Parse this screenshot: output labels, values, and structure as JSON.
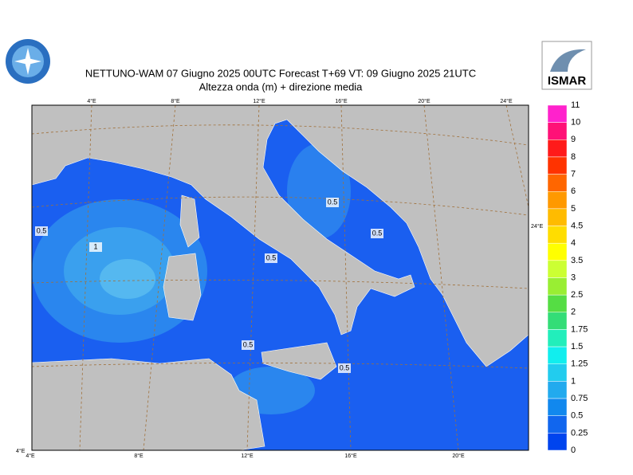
{
  "header": {
    "title": "NETTUNO-WAM  07   Giugno  2025 00UTC Forecast T+69 VT: 09   Giugno  2025 21UTC",
    "subtitle": "Altezza onda (m) + direzione media",
    "logo_right": "ISMAR"
  },
  "map": {
    "top_labels": [
      "4°E",
      "8°E",
      "12°E",
      "16°E",
      "20°E",
      "24°E"
    ],
    "bottom_labels": [
      "4°E",
      "8°E",
      "12°E",
      "16°E",
      "20°E"
    ],
    "right_label": "24°E",
    "corner_label": "4°E",
    "contour_labels": [
      "0.5",
      "1",
      "0.5",
      "0.5",
      "0.5",
      "0.5",
      "0.5"
    ]
  },
  "legend": {
    "labels": [
      "11",
      "10",
      "9",
      "8",
      "7",
      "6",
      "5",
      "4.5",
      "4",
      "3.5",
      "3",
      "2.5",
      "2",
      "1.75",
      "1.5",
      "1.25",
      "1",
      "0.75",
      "0.5",
      "0.25",
      "0"
    ],
    "colors": [
      "#ff22cc",
      "#ff1177",
      "#ff1a1a",
      "#ff3300",
      "#ff6600",
      "#ff9900",
      "#ffbb00",
      "#ffdd00",
      "#ffff00",
      "#ccff33",
      "#99ee33",
      "#55dd44",
      "#33dd77",
      "#22eebb",
      "#11eeee",
      "#22ccee",
      "#22aaee",
      "#1188ee",
      "#1166ee",
      "#0044ee"
    ]
  }
}
